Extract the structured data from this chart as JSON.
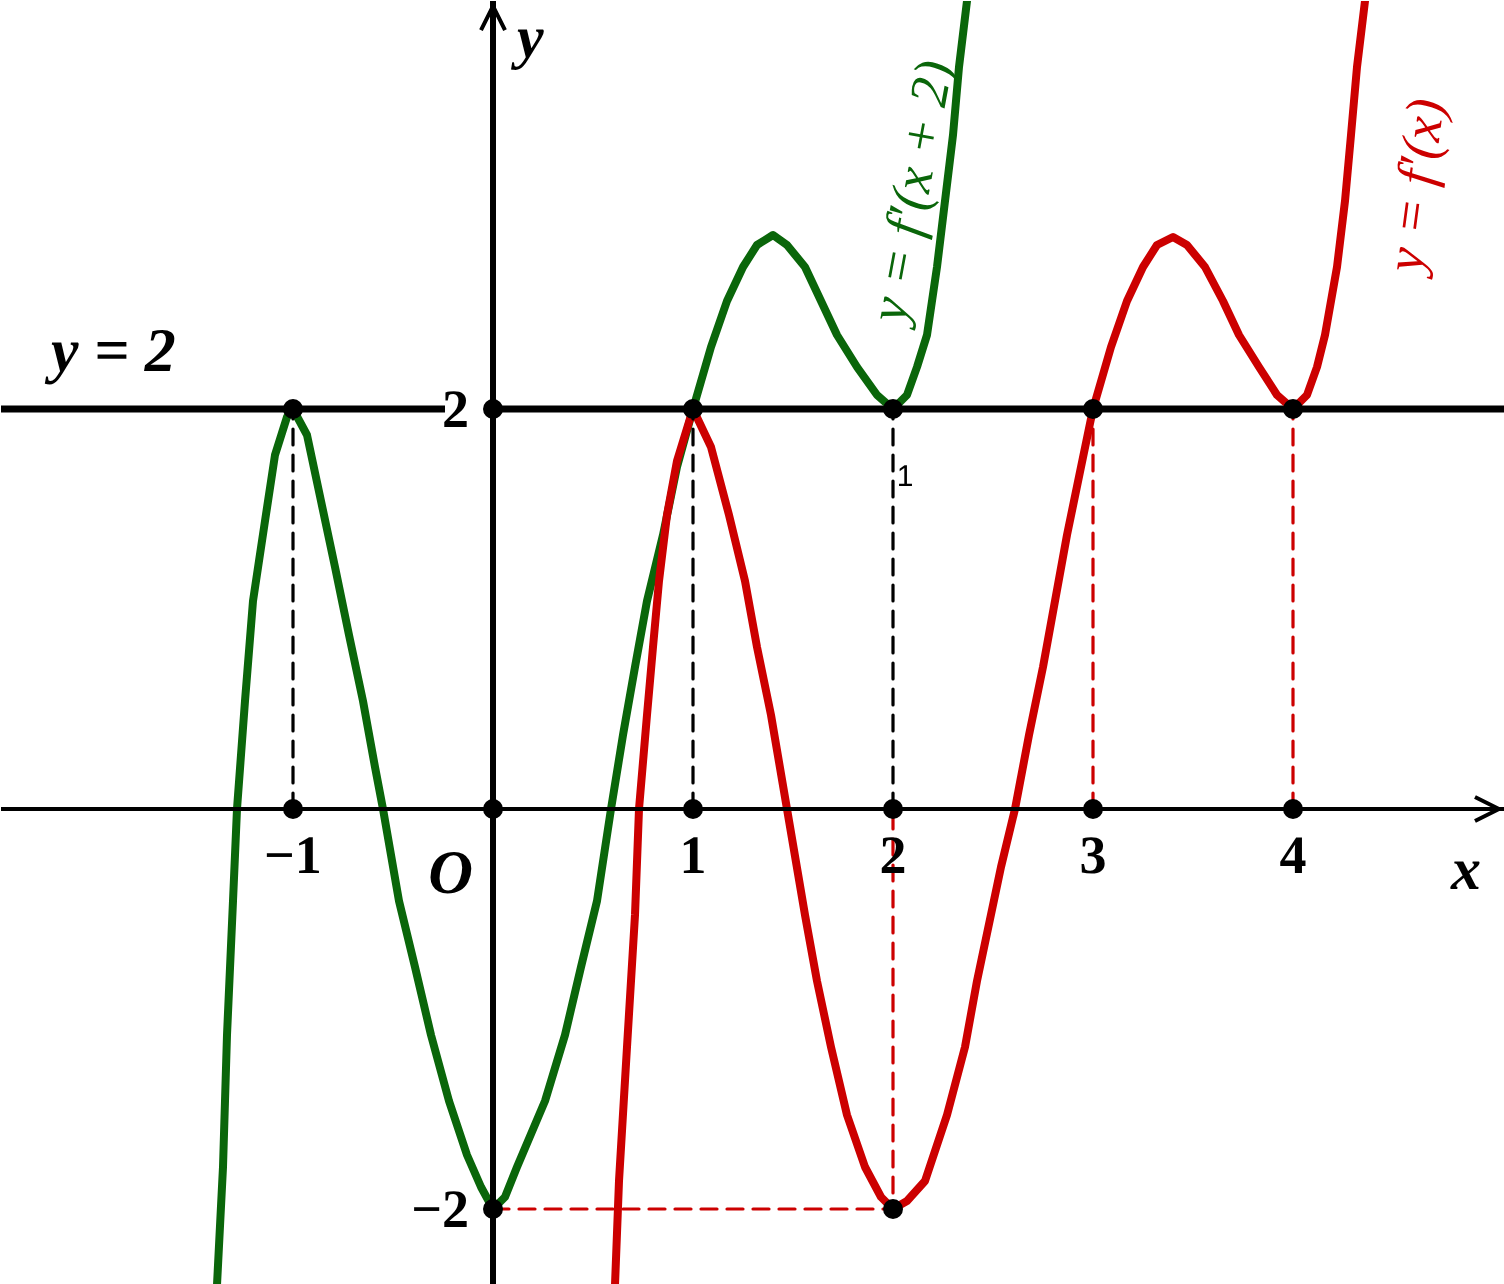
{
  "chart_data": {
    "type": "line",
    "xlabel": "x",
    "ylabel": "y",
    "xlim": [
      -2.46,
      5.06
    ],
    "ylim": [
      -2.38,
      4.04
    ],
    "xticks": [
      {
        "value": -1,
        "label": "−1"
      },
      1,
      2,
      3,
      4
    ],
    "yticks": [
      {
        "value": -2,
        "label": "−2"
      },
      2
    ],
    "ref_lines": [
      {
        "axis": "y",
        "value": 2,
        "label": "y = 2",
        "color": "#000000"
      }
    ],
    "annotations": [
      {
        "text": "O",
        "x": 0,
        "y": 0
      },
      "1"
    ],
    "series": [
      {
        "name": "y = f′(x + 2)",
        "color": "#0a660a",
        "x": [
          -1.38,
          -1.35,
          -1.33,
          -1.3,
          -1.28,
          -1.24,
          -1.2,
          -1.14,
          -1.09,
          -1.03,
          -1,
          -0.93,
          -0.86,
          -0.79,
          -0.72,
          -0.65,
          -0.59,
          -0.55,
          -0.47,
          -0.39,
          -0.31,
          -0.22,
          -0.13,
          -0.06,
          0,
          0.06,
          0.12,
          0.26,
          0.36,
          0.44,
          0.52,
          0.59,
          0.65,
          0.71,
          0.77,
          0.85,
          0.92,
          1,
          1.09,
          1.17,
          1.25,
          1.32,
          1.4,
          1.47,
          1.56,
          1.64,
          1.72,
          1.82,
          1.92,
          2,
          2.07,
          2.12,
          2.17,
          2.22,
          2.26,
          2.3,
          2.33,
          2.37
        ],
        "values": [
          -2.38,
          -1.79,
          -1.13,
          -0.46,
          0,
          0.54,
          1.04,
          1.44,
          1.77,
          1.96,
          2,
          1.87,
          1.54,
          1.21,
          0.87,
          0.54,
          0.21,
          0,
          -0.46,
          -0.79,
          -1.13,
          -1.46,
          -1.73,
          -1.89,
          -2,
          -1.94,
          -1.79,
          -1.46,
          -1.13,
          -0.79,
          -0.46,
          0,
          0.37,
          0.71,
          1.04,
          1.37,
          1.71,
          2,
          2.31,
          2.54,
          2.71,
          2.82,
          2.87,
          2.82,
          2.71,
          2.54,
          2.37,
          2.21,
          2.07,
          2,
          2.07,
          2.21,
          2.37,
          2.71,
          3.04,
          3.37,
          3.71,
          4.04
        ]
      },
      {
        "name": "y = f′(x)",
        "color": "#cc0000",
        "x": [
          0.61,
          0.63,
          0.67,
          0.71,
          0.73,
          0.77,
          0.8,
          0.83,
          0.87,
          0.92,
          1,
          1.09,
          1.18,
          1.26,
          1.32,
          1.39,
          1.47,
          1.56,
          1.62,
          1.69,
          1.77,
          1.86,
          1.94,
          2,
          2.07,
          2.16,
          2.27,
          2.36,
          2.42,
          2.54,
          2.61,
          2.68,
          2.75,
          2.81,
          2.87,
          2.94,
          3,
          3.09,
          3.17,
          3.25,
          3.32,
          3.4,
          3.47,
          3.56,
          3.65,
          3.73,
          3.83,
          3.92,
          4,
          4.07,
          4.12,
          4.16,
          4.22,
          4.26,
          4.29,
          4.32,
          4.36
        ],
        "values": [
          -2.38,
          -1.86,
          -1.19,
          -0.53,
          0,
          0.47,
          0.81,
          1.14,
          1.47,
          1.74,
          2,
          1.81,
          1.47,
          1.14,
          0.81,
          0.47,
          0,
          -0.53,
          -0.86,
          -1.19,
          -1.53,
          -1.79,
          -1.94,
          -2,
          -1.96,
          -1.86,
          -1.53,
          -1.19,
          -0.86,
          -0.29,
          0,
          0.37,
          0.71,
          1.04,
          1.37,
          1.71,
          2,
          2.31,
          2.54,
          2.71,
          2.82,
          2.86,
          2.82,
          2.71,
          2.54,
          2.37,
          2.21,
          2.07,
          2,
          2.07,
          2.21,
          2.37,
          2.71,
          3.04,
          3.37,
          3.71,
          4.04
        ]
      },
      {
        "color": "#000000",
        "line_style": "dashed",
        "x": [
          -1,
          -1
        ],
        "values": [
          0,
          2
        ]
      },
      {
        "color": "#000000",
        "line_style": "dashed",
        "x": [
          1,
          1
        ],
        "values": [
          0,
          2
        ]
      },
      {
        "color": "#000000",
        "line_style": "dashed",
        "x": [
          2,
          2
        ],
        "values": [
          0,
          2
        ]
      },
      {
        "color": "#cc0000",
        "line_style": "dashed",
        "x": [
          0,
          2,
          2
        ],
        "values": [
          -2,
          -2,
          0
        ]
      },
      {
        "color": "#cc0000",
        "line_style": "dashed",
        "x": [
          3,
          3
        ],
        "values": [
          0,
          2
        ]
      },
      {
        "color": "#cc0000",
        "line_style": "dashed",
        "x": [
          4,
          4
        ],
        "values": [
          0,
          2
        ]
      },
      {
        "type": "scatter",
        "marker": "circle",
        "color": "#000000",
        "x": [
          -1,
          0,
          1,
          2,
          3,
          4,
          -1,
          0,
          1,
          2,
          3,
          4,
          0,
          2
        ],
        "values": [
          2,
          2,
          2,
          2,
          2,
          2,
          0,
          0,
          0,
          0,
          0,
          0,
          -2,
          -2
        ]
      }
    ]
  }
}
